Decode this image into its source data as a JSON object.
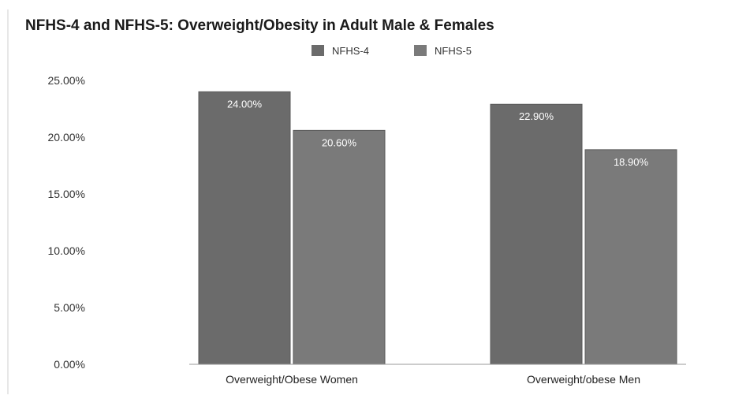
{
  "chart_data": {
    "type": "bar",
    "title": "NFHS-4 and NFHS-5: Overweight/Obesity in Adult Male & Females",
    "xlabel": "",
    "ylabel": "",
    "categories": [
      "Overweight/Obese Women",
      "Overweight/obese Men"
    ],
    "series": [
      {
        "name": "NFHS-4",
        "values": [
          24.0,
          22.9
        ],
        "labels": [
          "24.00%",
          "22.90%"
        ],
        "color": "#6b6b6b"
      },
      {
        "name": "NFHS-5",
        "values": [
          20.6,
          18.9
        ],
        "labels": [
          "20.60%",
          "18.90%"
        ],
        "color": "#7a7a7a"
      }
    ],
    "ylim": [
      0,
      25
    ],
    "yticks": [
      0,
      5,
      10,
      15,
      20,
      25
    ],
    "ytick_labels": [
      "0.00%",
      "5.00%",
      "10.00%",
      "15.00%",
      "20.00%",
      "25.00%"
    ],
    "grid": false,
    "legend_position": "top-center"
  }
}
